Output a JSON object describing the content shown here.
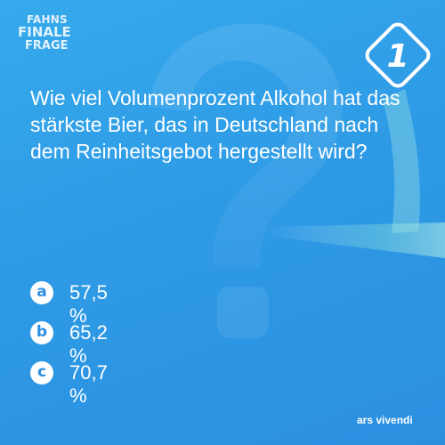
{
  "brand": {
    "line1": "FAHNS",
    "line2": "FINALE",
    "line3": "FRAGE"
  },
  "badge": {
    "number": "1",
    "color": "#ffffff",
    "icon": "diamond-number-badge"
  },
  "question": {
    "text": "Wie viel Volumenprozent Alkohol hat das stärkste Bier, das in Deutschland nach dem Reinheitsgebot hergestellt wird?"
  },
  "answers": [
    {
      "letter": "a",
      "value": "57,5 %"
    },
    {
      "letter": "b",
      "value": "65,2 %"
    },
    {
      "letter": "c",
      "value": "70,7 %"
    }
  ],
  "publisher": "ars vivendi",
  "colors": {
    "background": "#2e9be6",
    "accent": "#ffffff",
    "letter_text": "#2a8fe0"
  }
}
